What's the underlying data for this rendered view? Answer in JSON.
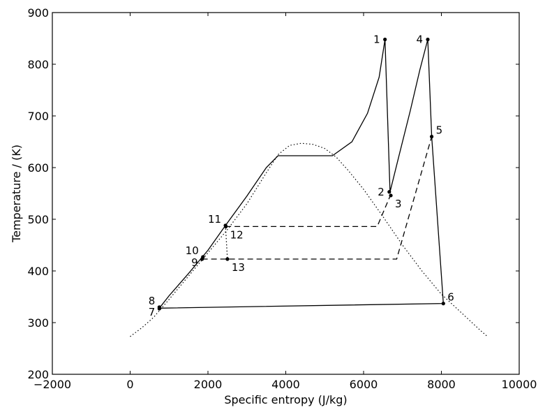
{
  "chart_data": {
    "type": "line",
    "title": "",
    "xlabel": "Specific entropy (J/kg)",
    "ylabel": "Temperature / (K)",
    "xlim": [
      -2000,
      10000
    ],
    "ylim": [
      200,
      900
    ],
    "xticks": [
      -2000,
      0,
      2000,
      4000,
      6000,
      8000,
      10000
    ],
    "yticks": [
      200,
      300,
      400,
      500,
      600,
      700,
      800,
      900
    ],
    "grid": false,
    "legend": "none",
    "dome": {
      "style": "dotted",
      "x": [
        0,
        300,
        600,
        1000,
        1500,
        2000,
        2500,
        3000,
        3500,
        3800,
        4100,
        4400,
        4700,
        5000,
        5300,
        5600,
        6000,
        6500,
        7000,
        7500,
        8000,
        8500,
        9000,
        9200
      ],
      "y": [
        273,
        290,
        310,
        345,
        390,
        435,
        480,
        530,
        590,
        625,
        643,
        647,
        645,
        637,
        620,
        595,
        558,
        505,
        450,
        400,
        355,
        320,
        285,
        272
      ]
    },
    "series": [
      {
        "style": "solid",
        "x": [
          750,
          1000,
          1500,
          2000,
          2450,
          3000,
          3500,
          3800,
          5200,
          5700,
          6100,
          6400,
          6550,
          6680,
          6900,
          7200,
          7450,
          7650,
          7750,
          8050,
          750
        ],
        "y": [
          328,
          352,
          395,
          440,
          488,
          545,
          600,
          623,
          623,
          650,
          705,
          775,
          848,
          553,
          620,
          710,
          790,
          848,
          660,
          337,
          328
        ]
      },
      {
        "style": "dashed",
        "x": [
          2450,
          6350,
          6700
        ],
        "y": [
          486,
          486,
          548
        ]
      },
      {
        "style": "dashed",
        "x": [
          1850,
          6850,
          7750
        ],
        "y": [
          423,
          423,
          660
        ]
      },
      {
        "style": "dotted",
        "x": [
          2450,
          2500
        ],
        "y": [
          488,
          423
        ]
      }
    ],
    "points": [
      {
        "label": "1",
        "x": 6550,
        "y": 848,
        "anchor": "left"
      },
      {
        "label": "2",
        "x": 6660,
        "y": 553,
        "anchor": "left"
      },
      {
        "label": "3",
        "x": 6700,
        "y": 546,
        "anchor": "below-right"
      },
      {
        "label": "4",
        "x": 7650,
        "y": 848,
        "anchor": "left"
      },
      {
        "label": "5",
        "x": 7750,
        "y": 660,
        "anchor": "above-right"
      },
      {
        "label": "6",
        "x": 8050,
        "y": 337,
        "anchor": "above-right"
      },
      {
        "label": "7",
        "x": 750,
        "y": 327,
        "anchor": "below-left"
      },
      {
        "label": "8",
        "x": 750,
        "y": 330,
        "anchor": "above-left"
      },
      {
        "label": "9",
        "x": 1850,
        "y": 423,
        "anchor": "below-left"
      },
      {
        "label": "10",
        "x": 1870,
        "y": 427,
        "anchor": "above-left"
      },
      {
        "label": "11",
        "x": 2450,
        "y": 488,
        "anchor": "above-left"
      },
      {
        "label": "12",
        "x": 2460,
        "y": 486,
        "anchor": "below-right"
      },
      {
        "label": "13",
        "x": 2500,
        "y": 423,
        "anchor": "below-right"
      }
    ]
  }
}
